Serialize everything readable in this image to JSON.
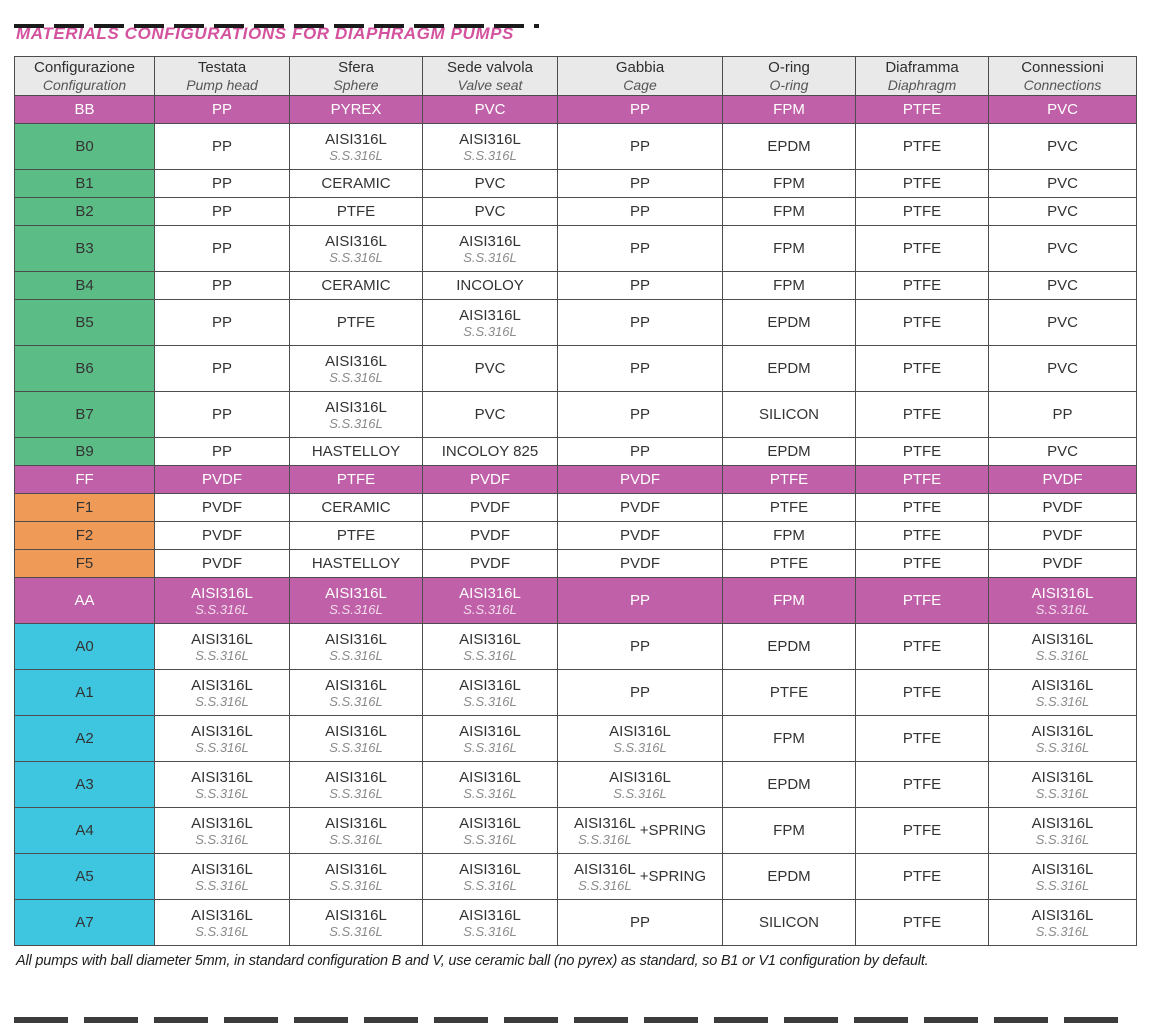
{
  "page": {
    "title": "MATERIALS CONFIGURATIONS FOR DIAPHRAGM PUMPS",
    "footnote": "All pumps with ball diameter 5mm, in standard configuration B and V, use ceramic ball (no pyrex) as standard, so B1 or V1 configuration by default."
  },
  "colors": {
    "magenta": "#bf60a8",
    "green": "#5cbc85",
    "orange": "#f09a57",
    "cyan": "#3ec6e0",
    "title": "#d4539e"
  },
  "table": {
    "columns": [
      {
        "it": "Configurazione",
        "en": "Configuration"
      },
      {
        "it": "Testata",
        "en": "Pump head"
      },
      {
        "it": "Sfera",
        "en": "Sphere"
      },
      {
        "it": "Sede valvola",
        "en": "Valve seat"
      },
      {
        "it": "Gabbia",
        "en": "Cage"
      },
      {
        "it": "O-ring",
        "en": "O-ring"
      },
      {
        "it": "Diaframma",
        "en": "Diaphragm"
      },
      {
        "it": "Connessioni",
        "en": "Connections"
      }
    ],
    "rows": [
      {
        "code": "BB",
        "group": "highlight",
        "cells": [
          "PP",
          "PYREX",
          "PVC",
          "PP",
          "FPM",
          "PTFE",
          "PVC"
        ]
      },
      {
        "code": "B0",
        "group": "green",
        "cells": [
          "PP",
          {
            "t": "AISI316L",
            "s": "S.S.316L"
          },
          {
            "t": "AISI316L",
            "s": "S.S.316L"
          },
          "PP",
          "EPDM",
          "PTFE",
          "PVC"
        ]
      },
      {
        "code": "B1",
        "group": "green",
        "cells": [
          "PP",
          "CERAMIC",
          "PVC",
          "PP",
          "FPM",
          "PTFE",
          "PVC"
        ]
      },
      {
        "code": "B2",
        "group": "green",
        "cells": [
          "PP",
          "PTFE",
          "PVC",
          "PP",
          "FPM",
          "PTFE",
          "PVC"
        ]
      },
      {
        "code": "B3",
        "group": "green",
        "cells": [
          "PP",
          {
            "t": "AISI316L",
            "s": "S.S.316L"
          },
          {
            "t": "AISI316L",
            "s": "S.S.316L"
          },
          "PP",
          "FPM",
          "PTFE",
          "PVC"
        ]
      },
      {
        "code": "B4",
        "group": "green",
        "cells": [
          "PP",
          "CERAMIC",
          "INCOLOY",
          "PP",
          "FPM",
          "PTFE",
          "PVC"
        ]
      },
      {
        "code": "B5",
        "group": "green",
        "cells": [
          "PP",
          "PTFE",
          {
            "t": "AISI316L",
            "s": "S.S.316L"
          },
          "PP",
          "EPDM",
          "PTFE",
          "PVC"
        ]
      },
      {
        "code": "B6",
        "group": "green",
        "cells": [
          "PP",
          {
            "t": "AISI316L",
            "s": "S.S.316L"
          },
          "PVC",
          "PP",
          "EPDM",
          "PTFE",
          "PVC"
        ]
      },
      {
        "code": "B7",
        "group": "green",
        "cells": [
          "PP",
          {
            "t": "AISI316L",
            "s": "S.S.316L"
          },
          "PVC",
          "PP",
          "SILICON",
          "PTFE",
          "PP"
        ]
      },
      {
        "code": "B9",
        "group": "green",
        "cells": [
          "PP",
          "HASTELLOY",
          "INCOLOY 825",
          "PP",
          "EPDM",
          "PTFE",
          "PVC"
        ]
      },
      {
        "code": "FF",
        "group": "highlight",
        "cells": [
          "PVDF",
          "PTFE",
          "PVDF",
          "PVDF",
          "PTFE",
          "PTFE",
          "PVDF"
        ]
      },
      {
        "code": "F1",
        "group": "orange",
        "cells": [
          "PVDF",
          "CERAMIC",
          "PVDF",
          "PVDF",
          "PTFE",
          "PTFE",
          "PVDF"
        ]
      },
      {
        "code": "F2",
        "group": "orange",
        "cells": [
          "PVDF",
          "PTFE",
          "PVDF",
          "PVDF",
          "FPM",
          "PTFE",
          "PVDF"
        ]
      },
      {
        "code": "F5",
        "group": "orange",
        "cells": [
          "PVDF",
          "HASTELLOY",
          "PVDF",
          "PVDF",
          "PTFE",
          "PTFE",
          "PVDF"
        ]
      },
      {
        "code": "AA",
        "group": "highlight",
        "cells": [
          {
            "t": "AISI316L",
            "s": "S.S.316L"
          },
          {
            "t": "AISI316L",
            "s": "S.S.316L"
          },
          {
            "t": "AISI316L",
            "s": "S.S.316L"
          },
          "PP",
          "FPM",
          "PTFE",
          {
            "t": "AISI316L",
            "s": "S.S.316L"
          }
        ]
      },
      {
        "code": "A0",
        "group": "cyan",
        "cells": [
          {
            "t": "AISI316L",
            "s": "S.S.316L"
          },
          {
            "t": "AISI316L",
            "s": "S.S.316L"
          },
          {
            "t": "AISI316L",
            "s": "S.S.316L"
          },
          "PP",
          "EPDM",
          "PTFE",
          {
            "t": "AISI316L",
            "s": "S.S.316L"
          }
        ]
      },
      {
        "code": "A1",
        "group": "cyan",
        "cells": [
          {
            "t": "AISI316L",
            "s": "S.S.316L"
          },
          {
            "t": "AISI316L",
            "s": "S.S.316L"
          },
          {
            "t": "AISI316L",
            "s": "S.S.316L"
          },
          "PP",
          "PTFE",
          "PTFE",
          {
            "t": "AISI316L",
            "s": "S.S.316L"
          }
        ]
      },
      {
        "code": "A2",
        "group": "cyan",
        "cells": [
          {
            "t": "AISI316L",
            "s": "S.S.316L"
          },
          {
            "t": "AISI316L",
            "s": "S.S.316L"
          },
          {
            "t": "AISI316L",
            "s": "S.S.316L"
          },
          {
            "t": "AISI316L",
            "s": "S.S.316L"
          },
          "FPM",
          "PTFE",
          {
            "t": "AISI316L",
            "s": "S.S.316L"
          }
        ]
      },
      {
        "code": "A3",
        "group": "cyan",
        "cells": [
          {
            "t": "AISI316L",
            "s": "S.S.316L"
          },
          {
            "t": "AISI316L",
            "s": "S.S.316L"
          },
          {
            "t": "AISI316L",
            "s": "S.S.316L"
          },
          {
            "t": "AISI316L",
            "s": "S.S.316L"
          },
          "EPDM",
          "PTFE",
          {
            "t": "AISI316L",
            "s": "S.S.316L"
          }
        ]
      },
      {
        "code": "A4",
        "group": "cyan",
        "cells": [
          {
            "t": "AISI316L",
            "s": "S.S.316L"
          },
          {
            "t": "AISI316L",
            "s": "S.S.316L"
          },
          {
            "t": "AISI316L",
            "s": "S.S.316L"
          },
          {
            "t": "AISI316L",
            "s": "S.S.316L",
            "x": "+SPRING"
          },
          "FPM",
          "PTFE",
          {
            "t": "AISI316L",
            "s": "S.S.316L"
          }
        ]
      },
      {
        "code": "A5",
        "group": "cyan",
        "cells": [
          {
            "t": "AISI316L",
            "s": "S.S.316L"
          },
          {
            "t": "AISI316L",
            "s": "S.S.316L"
          },
          {
            "t": "AISI316L",
            "s": "S.S.316L"
          },
          {
            "t": "AISI316L",
            "s": "S.S.316L",
            "x": "+SPRING"
          },
          "EPDM",
          "PTFE",
          {
            "t": "AISI316L",
            "s": "S.S.316L"
          }
        ]
      },
      {
        "code": "A7",
        "group": "cyan",
        "cells": [
          {
            "t": "AISI316L",
            "s": "S.S.316L"
          },
          {
            "t": "AISI316L",
            "s": "S.S.316L"
          },
          {
            "t": "AISI316L",
            "s": "S.S.316L"
          },
          "PP",
          "SILICON",
          "PTFE",
          {
            "t": "AISI316L",
            "s": "S.S.316L"
          }
        ]
      }
    ]
  }
}
